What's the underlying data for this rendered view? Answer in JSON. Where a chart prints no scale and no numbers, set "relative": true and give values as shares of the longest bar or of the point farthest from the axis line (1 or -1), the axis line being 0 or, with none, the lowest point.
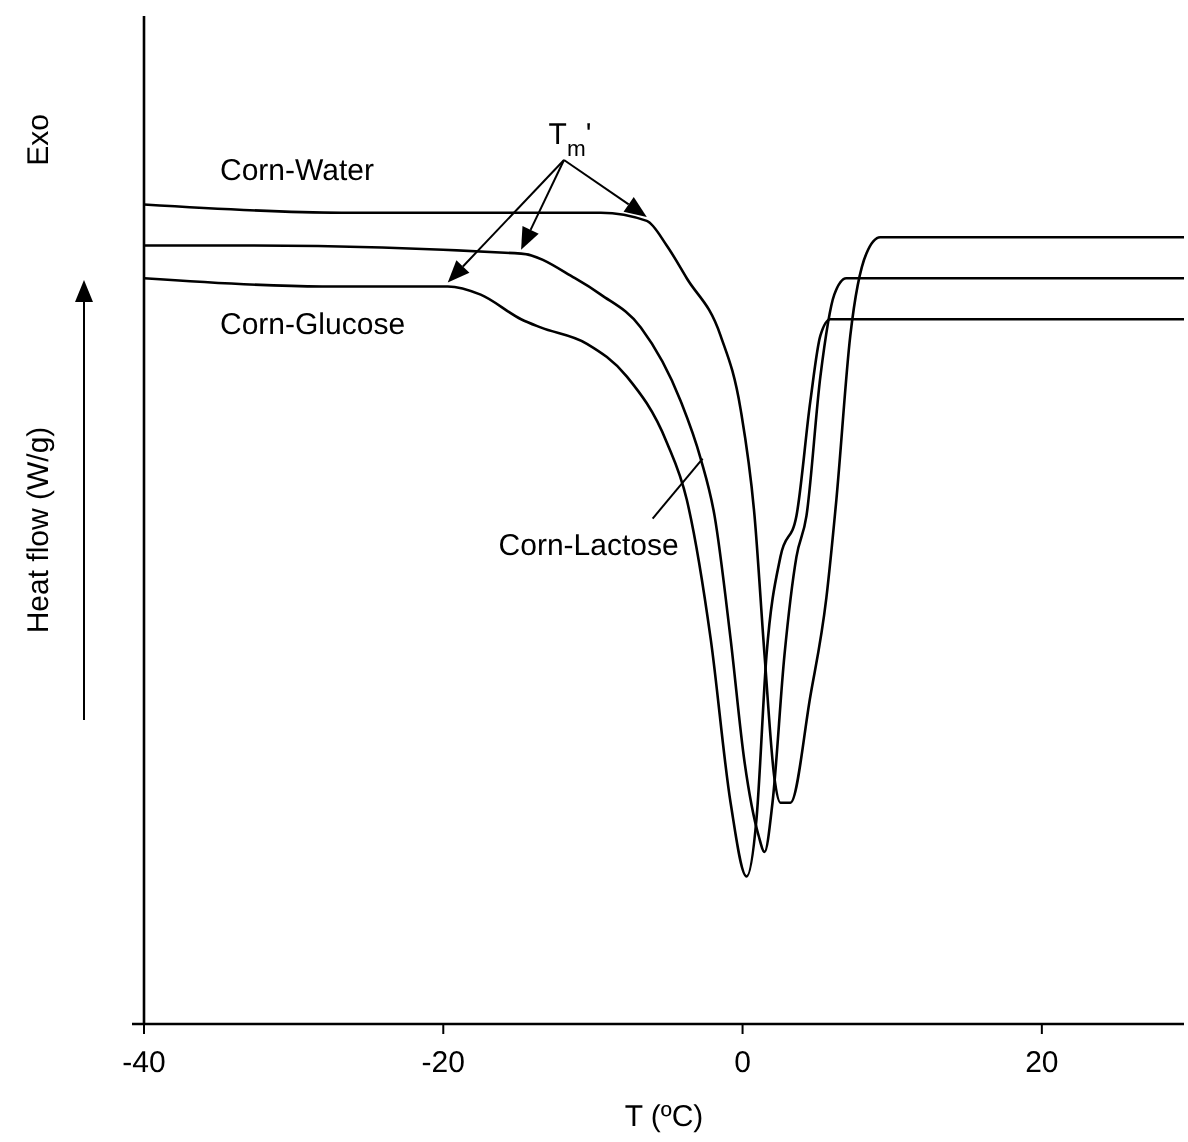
{
  "chart_data": {
    "type": "line",
    "relative": true,
    "xlabel": "T (ºC)",
    "ylabel": "Heat flow (W/g)",
    "xlim": [
      -40,
      29.5
    ],
    "xticks": [
      -40,
      -20,
      0,
      20
    ],
    "line_style": "solid",
    "annotations": [
      "Exo",
      "T$_{m}$'"
    ],
    "series": [
      {
        "name": "Corn-Water",
        "color": "#000000",
        "x": [
          -40,
          -26.8,
          -9.47,
          -6.4,
          -5.07,
          -3.73,
          -1.47,
          -0.13,
          0.8,
          1.47,
          2.13,
          2.53,
          3.2,
          4.53,
          5.6,
          6.27,
          7.2,
          8.27,
          9.2,
          10.53,
          25.6,
          26,
          29.5
        ],
        "values": [
          1,
          0.99,
          0.99,
          0.98,
          0.95,
          0.91,
          0.84,
          0.75,
          0.62,
          0.45,
          0.3,
          0.27,
          0.27,
          0.4,
          0.52,
          0.64,
          0.84,
          0.94,
          0.96,
          0.96,
          0.96,
          0.96,
          0.96
        ]
      },
      {
        "name": "Corn-Lactose",
        "color": "#000000",
        "x": [
          -40,
          -33.5,
          -14.8,
          -11.2,
          -9.47,
          -6.8,
          -4.13,
          -2.8,
          -1.87,
          -0.8,
          0.13,
          1.07,
          1.47,
          2,
          2.8,
          3.6,
          4.27,
          5.2,
          6.13,
          6.93,
          7.87,
          29.5
        ],
        "values": [
          0.95,
          0.95,
          0.94,
          0.91,
          0.89,
          0.85,
          0.76,
          0.69,
          0.62,
          0.47,
          0.32,
          0.23,
          0.21,
          0.27,
          0.45,
          0.57,
          0.62,
          0.79,
          0.89,
          0.91,
          0.91,
          0.91
        ]
      },
      {
        "name": "Corn-Glucose",
        "color": "#000000",
        "x": [
          -40,
          -28.1,
          -19.7,
          -17.5,
          -14.8,
          -13.5,
          -10.4,
          -7.73,
          -5.07,
          -3.73,
          -2.13,
          -0.8,
          0.27,
          0.93,
          1.6,
          2.53,
          3.6,
          4.53,
          5.2,
          5.87,
          18.3,
          18.5,
          29.5
        ],
        "values": [
          0.91,
          0.9,
          0.9,
          0.89,
          0.86,
          0.85,
          0.83,
          0.79,
          0.71,
          0.64,
          0.47,
          0.27,
          0.18,
          0.25,
          0.45,
          0.57,
          0.62,
          0.76,
          0.84,
          0.86,
          0.86,
          0.86,
          0.86
        ]
      }
    ]
  }
}
